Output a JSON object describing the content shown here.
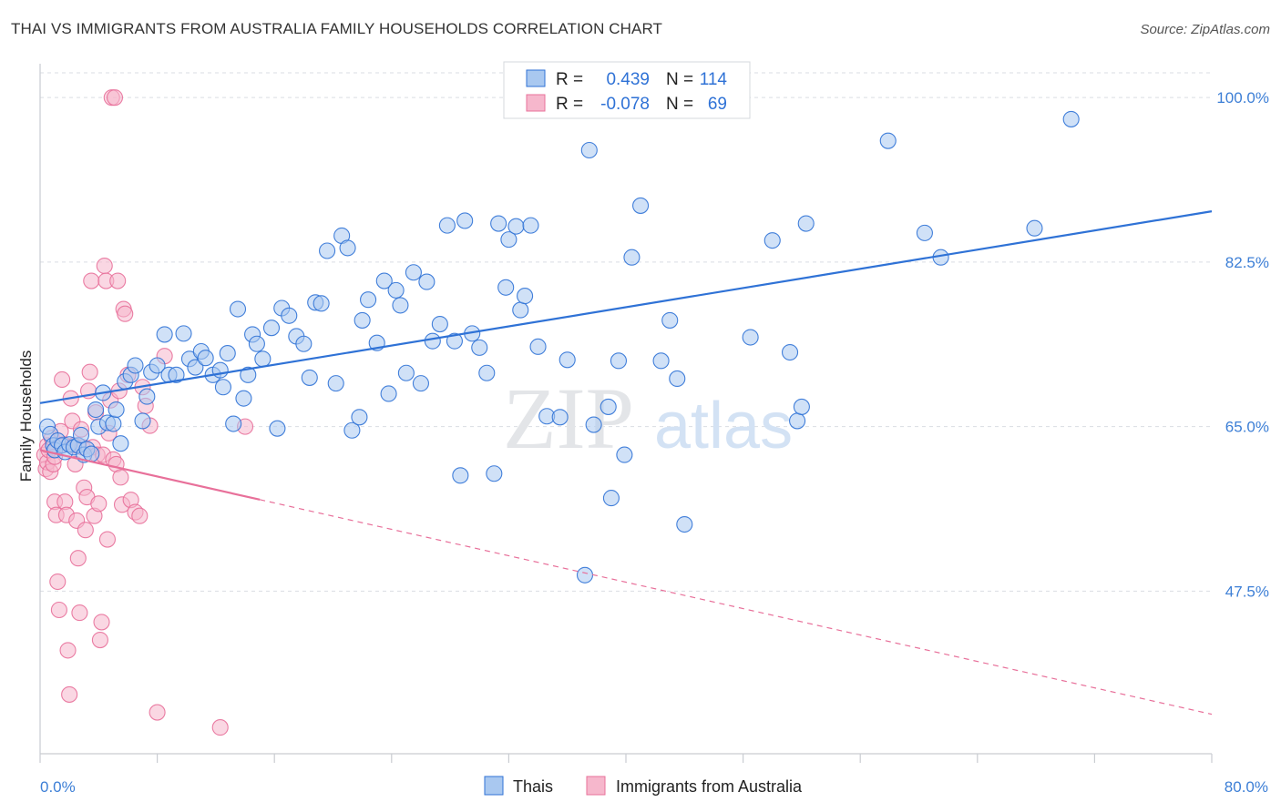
{
  "title": "THAI VS IMMIGRANTS FROM AUSTRALIA FAMILY HOUSEHOLDS CORRELATION CHART",
  "source": "Source: ZipAtlas.com",
  "watermark": {
    "zip": "ZIP",
    "atlas": "atlas"
  },
  "colors": {
    "blue": "#2f72d6",
    "blue_fill": "#a9c8f0",
    "pink": "#e8709a",
    "pink_fill": "#f6b7cc",
    "tick_label": "#3d7fd6",
    "grid": "#d9dde3"
  },
  "legend_top": {
    "rows": [
      {
        "r_label": "R =",
        "r_value": "0.439",
        "n_label": "N =",
        "n_value": "114"
      },
      {
        "r_label": "R =",
        "r_value": "-0.078",
        "n_label": "N =",
        "n_value": "69"
      }
    ]
  },
  "legend_bottom": [
    "Thais",
    "Immigrants from Australia"
  ],
  "chart_data": {
    "type": "scatter",
    "title": "THAI VS IMMIGRANTS FROM AUSTRALIA FAMILY HOUSEHOLDS CORRELATION CHART",
    "xlabel": "",
    "ylabel": "Family Households",
    "xlim": [
      0,
      80
    ],
    "ylim": [
      30.2,
      103.6
    ],
    "x_tick_labels": [
      "0.0%",
      "80.0%"
    ],
    "y_ticks": [
      47.5,
      65.0,
      82.5,
      100.0
    ],
    "y_tick_labels": [
      "47.5%",
      "65.0%",
      "82.5%",
      "100.0%"
    ],
    "grid": true,
    "legend": "bottom-center",
    "series": [
      {
        "name": "Thais",
        "r": 0.439,
        "n": 114,
        "trend": {
          "x": [
            0,
            80
          ],
          "y": [
            67.5,
            87.9
          ]
        },
        "points": [
          [
            0.5,
            65.0
          ],
          [
            0.7,
            64.2
          ],
          [
            0.9,
            63.0
          ],
          [
            1.0,
            62.5
          ],
          [
            1.2,
            63.5
          ],
          [
            1.5,
            63.0
          ],
          [
            1.7,
            62.3
          ],
          [
            2.0,
            63.1
          ],
          [
            2.3,
            62.8
          ],
          [
            2.6,
            63.0
          ],
          [
            2.8,
            64.1
          ],
          [
            3.0,
            62.0
          ],
          [
            3.2,
            62.6
          ],
          [
            3.5,
            62.1
          ],
          [
            3.8,
            66.8
          ],
          [
            4.0,
            65.0
          ],
          [
            4.3,
            68.6
          ],
          [
            4.6,
            65.4
          ],
          [
            5.0,
            65.3
          ],
          [
            5.2,
            66.8
          ],
          [
            5.5,
            63.2
          ],
          [
            5.8,
            69.8
          ],
          [
            6.2,
            70.5
          ],
          [
            6.5,
            71.5
          ],
          [
            7.0,
            65.6
          ],
          [
            7.3,
            68.2
          ],
          [
            7.6,
            70.8
          ],
          [
            8.0,
            71.5
          ],
          [
            8.5,
            74.8
          ],
          [
            8.8,
            70.5
          ],
          [
            9.3,
            70.5
          ],
          [
            9.8,
            74.9
          ],
          [
            10.2,
            72.2
          ],
          [
            10.6,
            71.3
          ],
          [
            11.0,
            73.0
          ],
          [
            11.3,
            72.3
          ],
          [
            11.8,
            70.5
          ],
          [
            12.3,
            71.0
          ],
          [
            12.5,
            69.2
          ],
          [
            12.8,
            72.8
          ],
          [
            13.2,
            65.3
          ],
          [
            13.5,
            77.5
          ],
          [
            13.9,
            68.0
          ],
          [
            14.2,
            70.5
          ],
          [
            14.5,
            74.8
          ],
          [
            14.8,
            73.8
          ],
          [
            15.2,
            72.2
          ],
          [
            15.8,
            75.5
          ],
          [
            16.2,
            64.8
          ],
          [
            16.5,
            77.6
          ],
          [
            17.0,
            76.8
          ],
          [
            17.5,
            74.6
          ],
          [
            18.0,
            73.8
          ],
          [
            18.4,
            70.2
          ],
          [
            18.8,
            78.2
          ],
          [
            19.2,
            78.1
          ],
          [
            19.6,
            83.7
          ],
          [
            20.2,
            69.6
          ],
          [
            20.6,
            85.3
          ],
          [
            21.0,
            84.0
          ],
          [
            21.3,
            64.6
          ],
          [
            21.8,
            66.0
          ],
          [
            22.0,
            76.3
          ],
          [
            22.4,
            78.5
          ],
          [
            23.0,
            73.9
          ],
          [
            23.5,
            80.5
          ],
          [
            23.8,
            68.5
          ],
          [
            24.3,
            79.5
          ],
          [
            24.6,
            77.9
          ],
          [
            25.0,
            70.7
          ],
          [
            25.5,
            81.4
          ],
          [
            26.0,
            69.6
          ],
          [
            26.4,
            80.4
          ],
          [
            26.8,
            74.1
          ],
          [
            27.3,
            75.9
          ],
          [
            27.8,
            86.4
          ],
          [
            28.3,
            74.1
          ],
          [
            28.7,
            59.8
          ],
          [
            29.0,
            86.9
          ],
          [
            29.5,
            74.9
          ],
          [
            30.0,
            73.4
          ],
          [
            30.5,
            70.7
          ],
          [
            31.0,
            60.0
          ],
          [
            31.3,
            86.6
          ],
          [
            31.8,
            79.8
          ],
          [
            32.0,
            84.9
          ],
          [
            32.5,
            86.3
          ],
          [
            32.8,
            77.4
          ],
          [
            33.1,
            78.9
          ],
          [
            33.5,
            86.4
          ],
          [
            34.0,
            73.5
          ],
          [
            34.6,
            66.1
          ],
          [
            35.5,
            66.0
          ],
          [
            36.0,
            72.1
          ],
          [
            37.2,
            49.2
          ],
          [
            37.5,
            94.4
          ],
          [
            37.8,
            65.2
          ],
          [
            38.8,
            67.1
          ],
          [
            39.0,
            57.4
          ],
          [
            39.5,
            72.0
          ],
          [
            39.9,
            62.0
          ],
          [
            40.4,
            83.0
          ],
          [
            41.0,
            88.5
          ],
          [
            42.4,
            72.0
          ],
          [
            43.0,
            76.3
          ],
          [
            43.5,
            70.1
          ],
          [
            44.0,
            54.6
          ],
          [
            48.5,
            74.5
          ],
          [
            50.0,
            84.8
          ],
          [
            51.2,
            72.9
          ],
          [
            51.7,
            65.6
          ],
          [
            52.0,
            67.1
          ],
          [
            52.3,
            86.6
          ],
          [
            57.9,
            95.4
          ],
          [
            60.4,
            85.6
          ],
          [
            61.5,
            83.0
          ],
          [
            67.9,
            86.1
          ],
          [
            70.4,
            97.7
          ]
        ]
      },
      {
        "name": "Immigrants from Australia",
        "r": -0.078,
        "n": 69,
        "trend": {
          "x": [
            0,
            80
          ],
          "y": [
            62.5,
            34.4
          ]
        },
        "trend_solid_until_x": 15,
        "points": [
          [
            0.3,
            62.0
          ],
          [
            0.4,
            60.5
          ],
          [
            0.5,
            63.0
          ],
          [
            0.5,
            61.2
          ],
          [
            0.6,
            62.5
          ],
          [
            0.7,
            60.2
          ],
          [
            0.8,
            63.8
          ],
          [
            0.9,
            61.0
          ],
          [
            1.0,
            61.8
          ],
          [
            1.0,
            57.0
          ],
          [
            1.1,
            55.6
          ],
          [
            1.2,
            48.5
          ],
          [
            1.3,
            45.5
          ],
          [
            1.4,
            64.5
          ],
          [
            1.5,
            70.0
          ],
          [
            1.6,
            63.1
          ],
          [
            1.7,
            57.0
          ],
          [
            1.8,
            55.6
          ],
          [
            1.9,
            41.2
          ],
          [
            2.0,
            36.5
          ],
          [
            2.1,
            68.0
          ],
          [
            2.2,
            65.6
          ],
          [
            2.3,
            63.0
          ],
          [
            2.4,
            61.0
          ],
          [
            2.5,
            55.0
          ],
          [
            2.6,
            51.0
          ],
          [
            2.7,
            45.2
          ],
          [
            2.8,
            64.7
          ],
          [
            2.9,
            62.8
          ],
          [
            3.0,
            58.5
          ],
          [
            3.1,
            54.0
          ],
          [
            3.2,
            57.5
          ],
          [
            3.3,
            68.8
          ],
          [
            3.4,
            70.8
          ],
          [
            3.5,
            80.5
          ],
          [
            3.6,
            62.8
          ],
          [
            3.7,
            55.5
          ],
          [
            3.8,
            66.5
          ],
          [
            3.9,
            62.0
          ],
          [
            4.0,
            56.8
          ],
          [
            4.1,
            42.3
          ],
          [
            4.2,
            44.2
          ],
          [
            4.3,
            62.0
          ],
          [
            4.4,
            82.1
          ],
          [
            4.5,
            80.5
          ],
          [
            4.6,
            53.0
          ],
          [
            4.7,
            64.3
          ],
          [
            4.8,
            67.8
          ],
          [
            4.9,
            100.0
          ],
          [
            5.0,
            61.5
          ],
          [
            5.1,
            100.0
          ],
          [
            5.2,
            61.0
          ],
          [
            5.3,
            80.5
          ],
          [
            5.4,
            68.8
          ],
          [
            5.5,
            59.6
          ],
          [
            5.6,
            56.7
          ],
          [
            5.7,
            77.5
          ],
          [
            5.8,
            77.0
          ],
          [
            6.0,
            70.5
          ],
          [
            6.2,
            57.2
          ],
          [
            6.5,
            55.9
          ],
          [
            6.8,
            55.5
          ],
          [
            7.0,
            69.2
          ],
          [
            7.2,
            67.2
          ],
          [
            7.5,
            65.1
          ],
          [
            8.0,
            34.6
          ],
          [
            8.5,
            72.5
          ],
          [
            12.3,
            33.0
          ],
          [
            14.0,
            65.0
          ]
        ]
      }
    ]
  }
}
